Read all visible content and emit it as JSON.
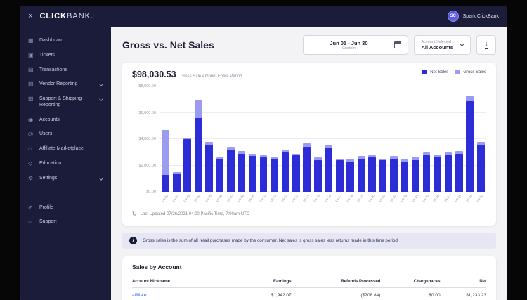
{
  "icons": {
    "close": "×",
    "dashboard": "▦",
    "tickets": "▣",
    "transactions": "▤",
    "vendor": "▧",
    "shipping": "▨",
    "accounts": "◉",
    "users": "◎",
    "marketplace": "⌂",
    "education": "◇",
    "settings": "⚙",
    "profile": "⊙",
    "support": "○",
    "download": "↓",
    "refresh": "↻",
    "info": "i"
  },
  "topbar": {
    "brand_bold": "CLICK",
    "brand_light": "BANK",
    "brand_dot": ".",
    "user_initials": "SC",
    "user_name": "Spark ClickBank"
  },
  "sidebar": {
    "items": [
      {
        "label": "Dashboard",
        "icon": "dashboard",
        "chevron": false
      },
      {
        "label": "Tickets",
        "icon": "tickets",
        "chevron": false
      },
      {
        "label": "Transactions",
        "icon": "transactions",
        "chevron": false
      },
      {
        "label": "Vendor Reporting",
        "icon": "vendor",
        "chevron": true
      },
      {
        "label": "Support & Shipping Reporting",
        "icon": "shipping",
        "chevron": true
      },
      {
        "label": "Accounts",
        "icon": "accounts",
        "chevron": false
      },
      {
        "label": "Users",
        "icon": "users",
        "chevron": false
      },
      {
        "label": "Affiliate Marketplace",
        "icon": "marketplace",
        "chevron": false
      },
      {
        "label": "Education",
        "icon": "education",
        "chevron": false
      },
      {
        "label": "Settings",
        "icon": "settings",
        "chevron": true
      }
    ],
    "footer_items": [
      {
        "label": "Profile",
        "icon": "profile",
        "chevron": false
      },
      {
        "label": "Support",
        "icon": "support",
        "chevron": false
      }
    ]
  },
  "main": {
    "title": "Gross vs. Net Sales",
    "date_range": "Jun 01 - Jun 30",
    "date_mode": "Custom",
    "account_label": "Account Selected",
    "account_value": "All Accounts",
    "summary_amount": "$98,030.53",
    "summary_caption": "Gross Sale Amount Entire Period",
    "legend": [
      {
        "label": "Net Sales",
        "color": "#2d2dd8"
      },
      {
        "label": "Gross Sales",
        "color": "#9b9bf3"
      }
    ],
    "last_updated": "Last Updated 07/26/2021 04:00 Pacific Time, 7:00am UTC",
    "info_banner": "Gross sales is the sum of all retail purchases made by the consumer. Net sales is gross sales less returns made in this time period."
  },
  "chart_data": {
    "type": "bar",
    "title": "Gross vs. Net Sales",
    "xlabel": "",
    "ylabel": "",
    "ylim": [
      0,
      8000
    ],
    "yticks": [
      "$0.00",
      "$2,000.00",
      "$4,000.00",
      "$6,000.00",
      "$8,000.00"
    ],
    "grid": true,
    "legend_position": "top-right",
    "categories": [
      "06-01",
      "06-02",
      "06-03",
      "06-04",
      "06-05",
      "06-06",
      "06-07",
      "06-08",
      "06-09",
      "06-10",
      "06-11",
      "06-12",
      "06-13",
      "06-14",
      "06-15",
      "06-16",
      "06-17",
      "06-18",
      "06-19",
      "06-20",
      "06-21",
      "06-22",
      "06-23",
      "06-24",
      "06-25",
      "06-26",
      "06-27",
      "06-28",
      "06-29",
      "06-30"
    ],
    "series": [
      {
        "name": "Gross Sales",
        "color": "#9b9bf3",
        "values": [
          4700,
          1500,
          4100,
          7000,
          3800,
          2600,
          3400,
          3100,
          2900,
          2800,
          2600,
          3200,
          2900,
          3700,
          2600,
          3600,
          2500,
          2500,
          2700,
          2800,
          2500,
          2700,
          2500,
          2600,
          3000,
          2800,
          3000,
          3100,
          7300,
          3800
        ]
      },
      {
        "name": "Net Sales",
        "color": "#2d2dd8",
        "values": [
          1300,
          1400,
          4000,
          5600,
          3600,
          2500,
          3200,
          2900,
          2700,
          2600,
          2500,
          3000,
          2800,
          3400,
          2400,
          3300,
          2400,
          2300,
          2500,
          2600,
          2400,
          2500,
          2300,
          2400,
          2800,
          2600,
          2800,
          2900,
          6900,
          3600
        ]
      }
    ]
  },
  "table": {
    "title": "Sales by Account",
    "columns": [
      "Account Nickname",
      "Earnings",
      "Refunds Processed",
      "Chargebacks",
      "Net"
    ],
    "rows": [
      {
        "account": "affiliate1",
        "earnings": "$1,942.07",
        "refunds": "($708.84)",
        "chargebacks": "$0.00",
        "net": "$1,233.23"
      }
    ]
  }
}
